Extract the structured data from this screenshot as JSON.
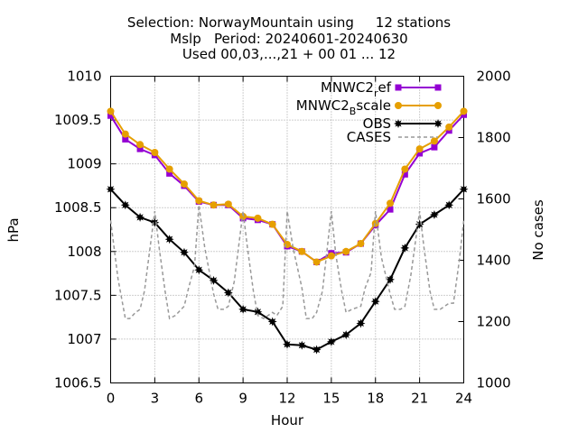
{
  "chart_data": {
    "type": "line",
    "title_lines": [
      "Selection: NorwayMountain using     12 stations",
      "Mslp   Period: 20240601-20240630",
      "Used 00,03,...,21 + 00 01 ... 12"
    ],
    "xlabel": "Hour",
    "ylabel": "hPa",
    "y2label": "No cases",
    "xlim": [
      0,
      24
    ],
    "ylim": [
      1006.5,
      1010
    ],
    "y2lim": [
      1000,
      2000
    ],
    "x_ticks": [
      0,
      3,
      6,
      9,
      12,
      15,
      18,
      21,
      24
    ],
    "y_ticks": [
      "1006.5",
      "1007",
      "1007.5",
      "1008",
      "1008.5",
      "1009",
      "1009.5",
      "1010"
    ],
    "y2_ticks": [
      "1000",
      "1200",
      "1400",
      "1600",
      "1800",
      "2000"
    ],
    "grid": true,
    "legend_position": "top-right",
    "x": [
      0,
      1,
      2,
      3,
      4,
      5,
      6,
      7,
      8,
      9,
      10,
      11,
      12,
      13,
      14,
      15,
      16,
      17,
      18,
      19,
      20,
      21,
      22,
      23,
      24
    ],
    "series": [
      {
        "name": "MNWC2",
        "subscript": "r",
        "name_suffix": "ef",
        "color": "#9400d3",
        "marker": "square",
        "axis": "y1",
        "values": [
          1009.55,
          1009.28,
          1009.17,
          1009.1,
          1008.89,
          1008.75,
          1008.57,
          1008.53,
          1008.53,
          1008.38,
          1008.36,
          1008.31,
          1008.06,
          1008.0,
          1007.88,
          1007.98,
          1007.99,
          1008.09,
          1008.3,
          1008.48,
          1008.88,
          1009.12,
          1009.19,
          1009.38,
          1009.56
        ]
      },
      {
        "name": "MNWC2",
        "subscript": "B",
        "name_suffix": "scale",
        "color": "#e69f00",
        "marker": "circle",
        "axis": "y1",
        "values": [
          1009.6,
          1009.34,
          1009.22,
          1009.13,
          1008.94,
          1008.77,
          1008.58,
          1008.53,
          1008.54,
          1008.4,
          1008.38,
          1008.31,
          1008.08,
          1008.0,
          1007.88,
          1007.95,
          1008.0,
          1008.09,
          1008.32,
          1008.55,
          1008.94,
          1009.17,
          1009.26,
          1009.42,
          1009.6
        ]
      },
      {
        "name": "OBS",
        "color": "#000000",
        "marker": "star",
        "axis": "y1",
        "values": [
          1008.71,
          1008.53,
          1008.39,
          1008.33,
          1008.14,
          1007.99,
          1007.79,
          1007.67,
          1007.53,
          1007.34,
          1007.31,
          1007.2,
          1006.94,
          1006.93,
          1006.88,
          1006.97,
          1007.05,
          1007.18,
          1007.43,
          1007.68,
          1008.04,
          1008.31,
          1008.42,
          1008.53,
          1008.71
        ]
      },
      {
        "name": "CASES",
        "color": "#999999",
        "dashed": true,
        "axis": "y2",
        "x": [
          0,
          0.5,
          1,
          1.3,
          1.7,
          2,
          2.3,
          3,
          3.3,
          3.7,
          4,
          4.4,
          5,
          5.3,
          5.7,
          6,
          6.4,
          7,
          7.3,
          7.7,
          8,
          8.4,
          9,
          9.3,
          9.7,
          10,
          10.4,
          11,
          11.3,
          11.7,
          12,
          12.4,
          13,
          13.3,
          13.7,
          14,
          14.4,
          15,
          15.3,
          15.7,
          16,
          16.4,
          17,
          17.3,
          17.7,
          18,
          18.4,
          19,
          19.3,
          19.7,
          20,
          20.4,
          21,
          21.3,
          21.7,
          22,
          22.4,
          23,
          23.3,
          23.7,
          24
        ],
        "values": [
          1530,
          1340,
          1210,
          1210,
          1230,
          1240,
          1300,
          1560,
          1440,
          1300,
          1210,
          1220,
          1250,
          1310,
          1380,
          1580,
          1440,
          1290,
          1240,
          1240,
          1250,
          1330,
          1560,
          1440,
          1300,
          1220,
          1210,
          1230,
          1220,
          1250,
          1560,
          1440,
          1310,
          1210,
          1210,
          1230,
          1300,
          1560,
          1420,
          1300,
          1230,
          1240,
          1250,
          1310,
          1360,
          1560,
          1410,
          1290,
          1240,
          1240,
          1250,
          1350,
          1560,
          1440,
          1300,
          1240,
          1240,
          1260,
          1260,
          1400,
          1530
        ]
      }
    ]
  }
}
